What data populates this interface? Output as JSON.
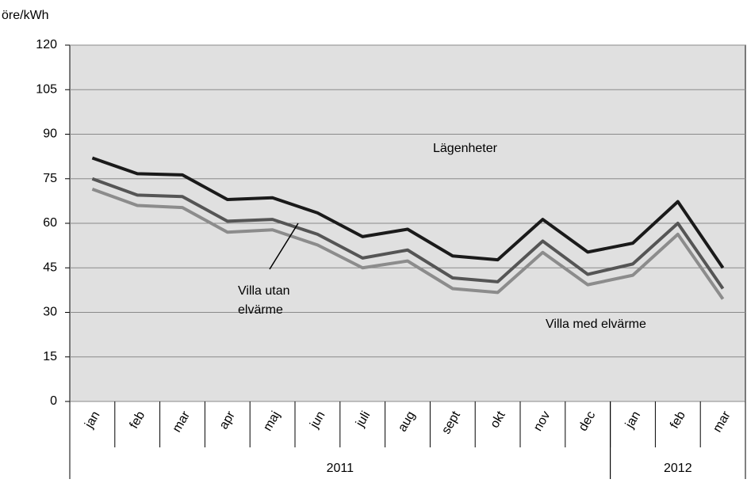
{
  "chart_data": {
    "type": "line",
    "y_label": "öre/kWh",
    "categories": [
      "jan",
      "feb",
      "mar",
      "apr",
      "maj",
      "jun",
      "juli",
      "aug",
      "sept",
      "okt",
      "nov",
      "dec",
      "jan",
      "feb",
      "mar"
    ],
    "category_groups": [
      {
        "label": "2011",
        "span": 12
      },
      {
        "label": "2012",
        "span": 3
      }
    ],
    "series": [
      {
        "name": "Lägenheter",
        "color": "#1a1a1a",
        "values": [
          82,
          76.7,
          76.3,
          68,
          68.6,
          63.5,
          55.5,
          58,
          49,
          47.7,
          61.3,
          50.3,
          53.3,
          67.3,
          45
        ]
      },
      {
        "name": "Villa utan elvärme",
        "color": "#555555",
        "values": [
          75,
          69.5,
          69,
          60.7,
          61.3,
          56.3,
          48.3,
          51,
          41.6,
          40.3,
          54,
          42.8,
          46.3,
          60,
          38
        ]
      },
      {
        "name": "Villa med elvärme",
        "color": "#8c8c8c",
        "values": [
          71.5,
          66,
          65.3,
          57,
          57.8,
          52.7,
          45,
          47.3,
          38,
          36.7,
          50.2,
          39.3,
          42.5,
          56.3,
          34.5
        ]
      }
    ],
    "annotations": [
      {
        "lines": [
          "Lägenheter"
        ]
      },
      {
        "lines": [
          "Villa utan",
          "elvärme"
        ]
      },
      {
        "lines": [
          "Villa med elvärme"
        ]
      }
    ],
    "ylim": [
      0,
      120
    ],
    "yticks": [
      0,
      15,
      30,
      45,
      60,
      75,
      90,
      105,
      120
    ],
    "grid": true,
    "plot_background": "#e0e0e0"
  }
}
